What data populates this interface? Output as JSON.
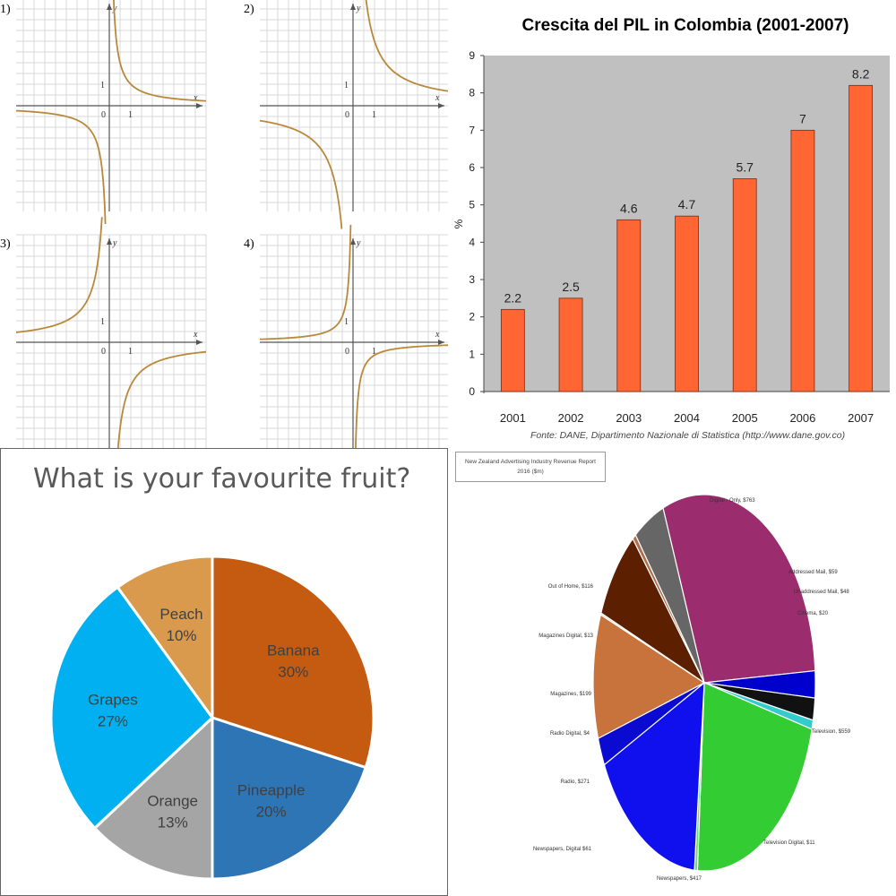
{
  "graphs": {
    "labels": [
      "1)",
      "2)",
      "3)",
      "4)"
    ],
    "x_axis": "x",
    "y_axis": "y",
    "tick_zero": "0",
    "tick_one": "1",
    "curves": [
      "y = 1/x on upper right, steep descent to negative on left",
      "",
      "",
      ""
    ]
  },
  "chart_data": [
    {
      "type": "bar",
      "title": "Crescita del PIL in Colombia (2001-2007)",
      "ylabel": "%",
      "xlabel": "",
      "categories": [
        "2001",
        "2002",
        "2003",
        "2004",
        "2005",
        "2006",
        "2007"
      ],
      "values": [
        2.2,
        2.5,
        4.6,
        4.7,
        5.7,
        7,
        8.2
      ],
      "value_labels": [
        "2.2",
        "2.5",
        "4.6",
        "4.7",
        "5.7",
        "7",
        "8.2"
      ],
      "yticks": [
        "0",
        "1",
        "2",
        "3",
        "4",
        "5",
        "6",
        "7",
        "8",
        "9"
      ],
      "ylim": [
        0,
        9
      ],
      "grid": false,
      "source": "Fonte: DANE, Dipartimento Nazionale di Statistica (http://www.dane.gov.co)",
      "colors": {
        "bar": "#ff6633",
        "plot_bg": "#c0c0c0"
      }
    },
    {
      "type": "pie",
      "title": "What is your favourite fruit?",
      "slices": [
        {
          "name": "Banana",
          "pct_label": "30%",
          "value": 30,
          "color": "#c55a11",
          "label_color": "#404040"
        },
        {
          "name": "Pineapple",
          "pct_label": "20%",
          "value": 20,
          "color": "#2e75b6",
          "label_color": "#404040"
        },
        {
          "name": "Orange",
          "pct_label": "13%",
          "value": 13,
          "color": "#a5a5a5",
          "label_color": "#404040"
        },
        {
          "name": "Grapes",
          "pct_label": "27%",
          "value": 27,
          "color": "#00b0f0",
          "label_color": "#404040"
        },
        {
          "name": "Peach",
          "pct_label": "10%",
          "value": 10,
          "color": "#d99a4e",
          "label_color": "#404040"
        }
      ]
    },
    {
      "type": "pie",
      "title": "New Zealand Advertising Industry Revenue Report 2016 ($m)",
      "title_lines": [
        "New Zealand Advertising Industry Revenue Report",
        "2016 ($m)"
      ],
      "slices": [
        {
          "name": "Digital - Only",
          "label": "Digital - Only, $763",
          "value": 763,
          "color": "#9b2d6e"
        },
        {
          "name": "Addressed Mail",
          "label": "Addressed Mail, $59",
          "value": 59,
          "color": "#0000cc"
        },
        {
          "name": "Unaddressed Mail",
          "label": "Unaddressed Mail, $48",
          "value": 48,
          "color": "#111111"
        },
        {
          "name": "Cinema",
          "label": "Cinema, $20",
          "value": 20,
          "color": "#33cccc"
        },
        {
          "name": "Television",
          "label": "Television, $559",
          "value": 559,
          "color": "#33cc33"
        },
        {
          "name": "Television Digital",
          "label": "Television Digital, $11",
          "value": 11,
          "color": "#66dd66"
        },
        {
          "name": "Newspapers",
          "label": "Newspapers, $417",
          "value": 417,
          "color": "#1010ee"
        },
        {
          "name": "Newspapers Digital",
          "label": "Newspapers, Digital $61",
          "value": 61,
          "color": "#0a0ad0"
        },
        {
          "name": "Radio",
          "label": "Radio, $271",
          "value": 271,
          "color": "#c8733c"
        },
        {
          "name": "Radio Digital",
          "label": "Radio Digital, $4",
          "value": 4,
          "color": "#d0d0d0"
        },
        {
          "name": "Magazines",
          "label": "Magazines, $199",
          "value": 199,
          "color": "#5c1f00"
        },
        {
          "name": "Magazines Digital",
          "label": "Magazines Digital, $13",
          "value": 13,
          "color": "#b07050"
        },
        {
          "name": "Out of Home",
          "label": "Out of Home, $116",
          "value": 116,
          "color": "#666666"
        }
      ]
    }
  ]
}
